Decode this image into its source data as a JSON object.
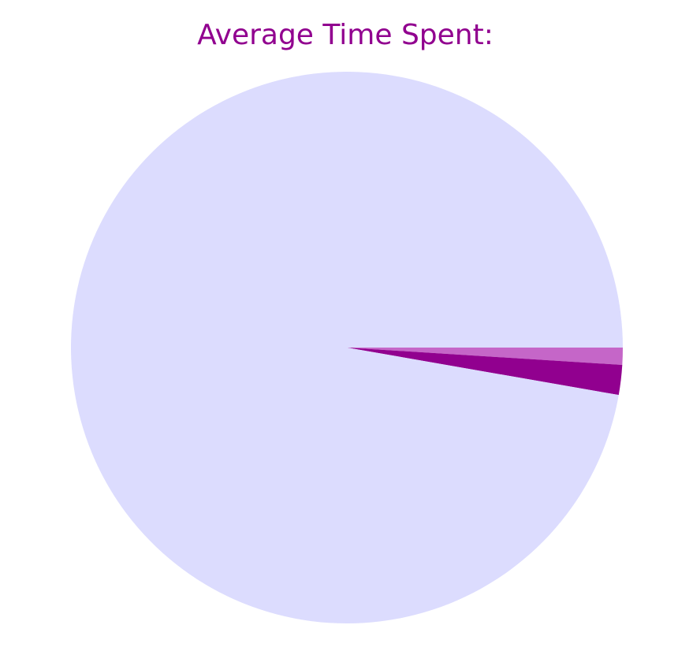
{
  "chart_data": {
    "type": "pie",
    "title": "Average Time Spent:",
    "slices": [
      {
        "value": 1.0,
        "color": "#c566c8"
      },
      {
        "value": 1.75,
        "color": "#91008f"
      },
      {
        "value": 97.25,
        "color": "#dcdcfe"
      }
    ],
    "start_angle_deg": 0,
    "direction": "clockwise",
    "title_color": "#91008f",
    "legend": "none"
  }
}
